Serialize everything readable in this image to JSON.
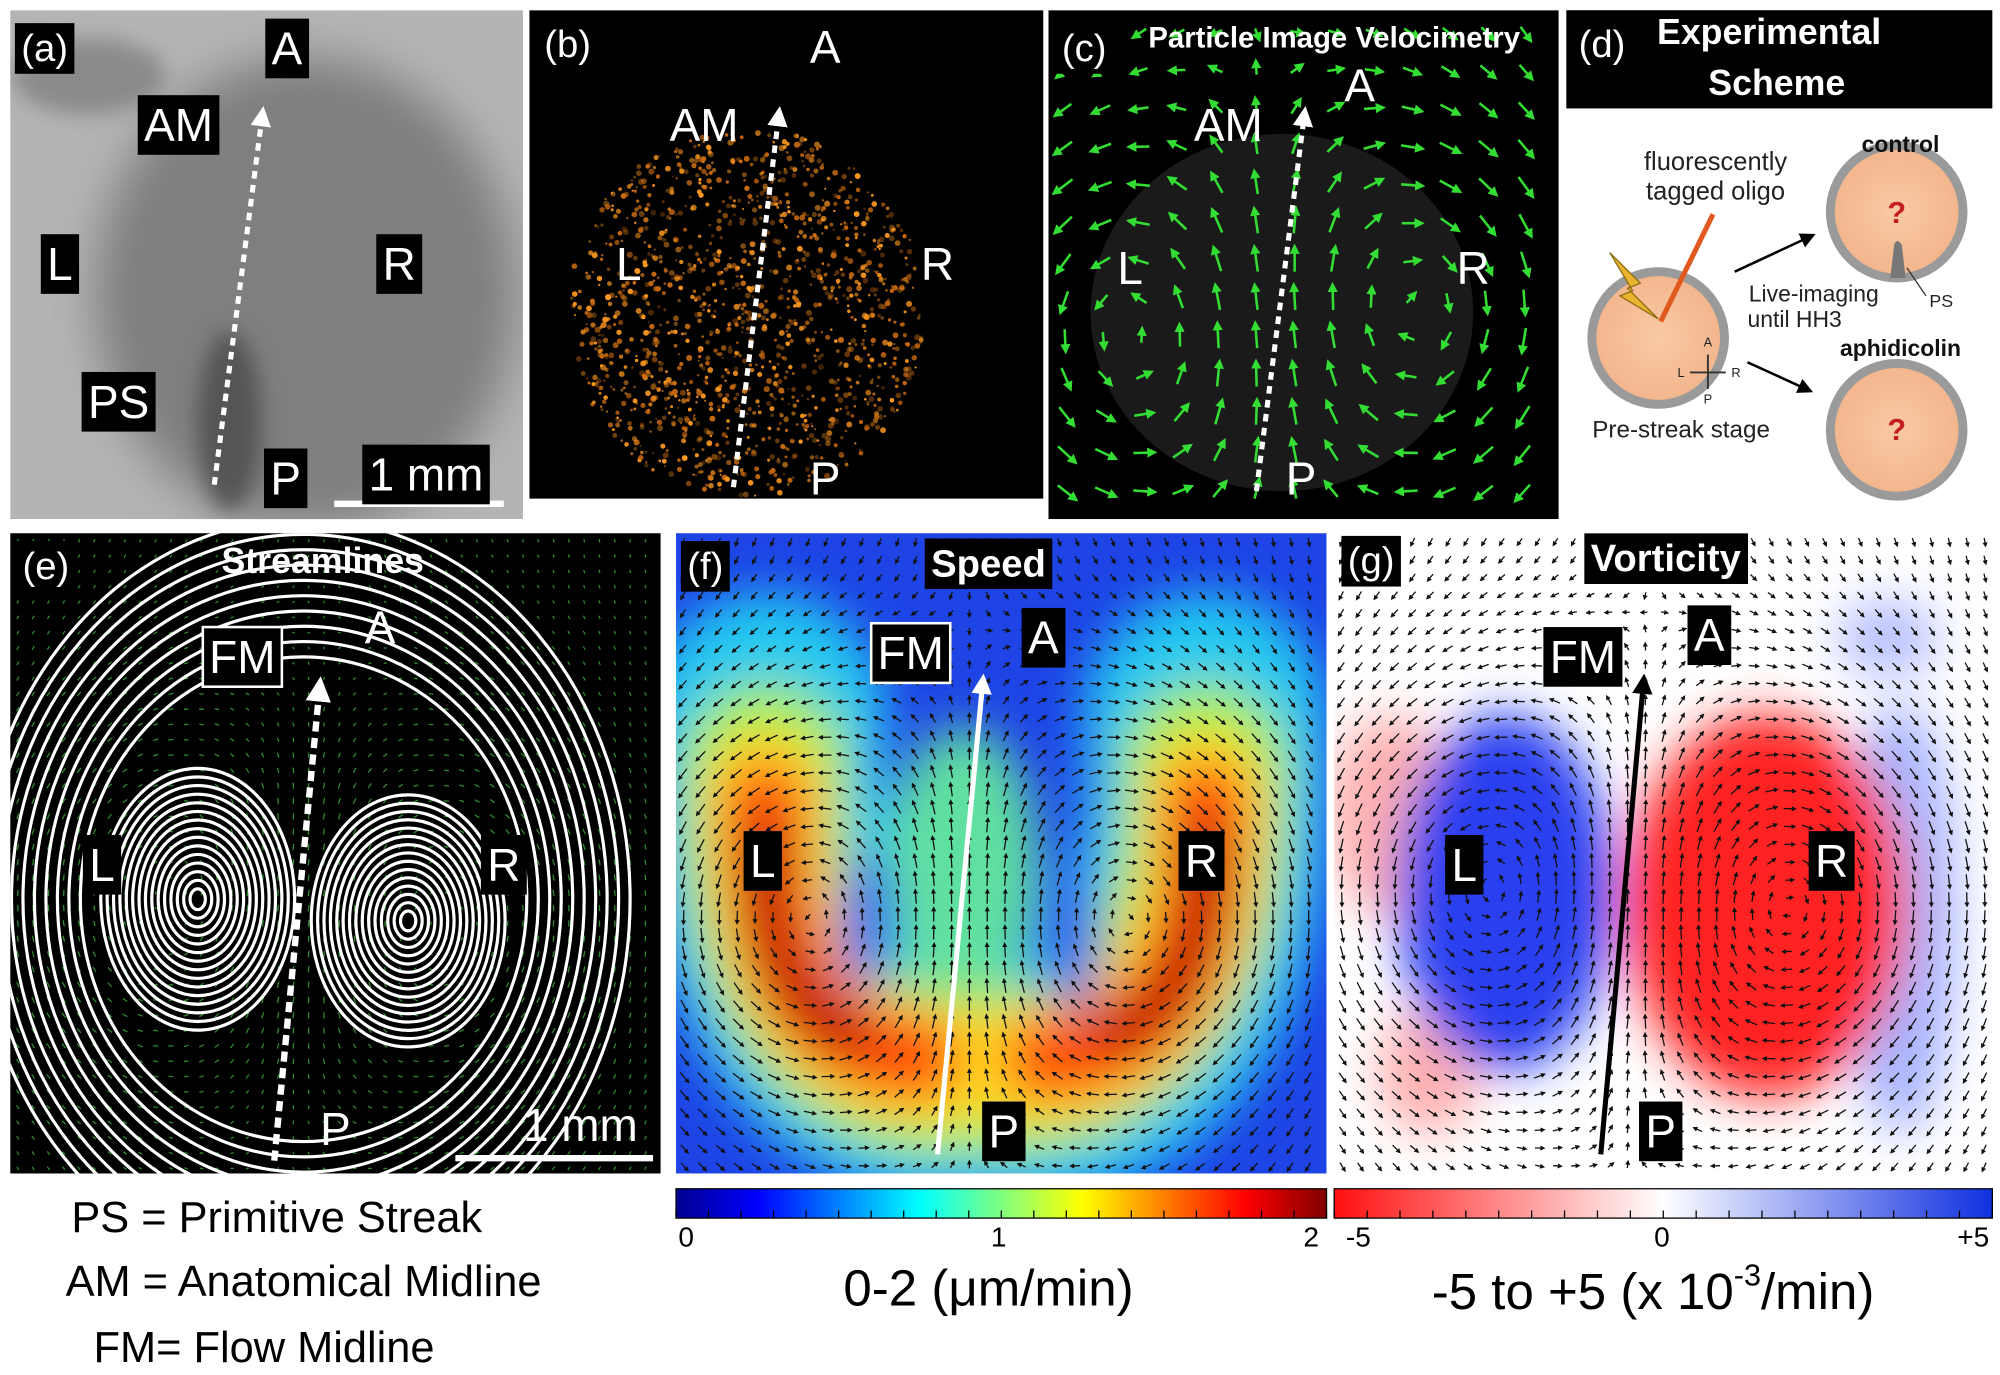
{
  "panel_a": {
    "label": "(a)",
    "markers": [
      "A",
      "AM",
      "L",
      "R",
      "PS",
      "P"
    ],
    "scale_bar": "1 mm"
  },
  "panel_b": {
    "label": "(b)",
    "markers": [
      "A",
      "AM",
      "L",
      "R",
      "P"
    ]
  },
  "panel_c": {
    "label": "(c)",
    "title": "Particle Image Velocimetry",
    "markers": [
      "A",
      "AM",
      "L",
      "R",
      "P"
    ]
  },
  "panel_d": {
    "label": "(d)",
    "title": [
      "Experimental",
      "Scheme"
    ],
    "injection": [
      "fluorescently",
      "tagged oligo"
    ],
    "imaging": [
      "Live-imaging",
      "until HH3"
    ],
    "axes": [
      "A",
      "L",
      "R",
      "P"
    ],
    "stage": "Pre-streak stage",
    "conditions": [
      {
        "name": "control",
        "result": "?",
        "annotation": "PS"
      },
      {
        "name": "aphidicolin",
        "result": "?"
      }
    ]
  },
  "panel_e": {
    "label": "(e)",
    "title": "Streamlines",
    "markers": [
      "FM",
      "A",
      "L",
      "R",
      "P"
    ],
    "scale_bar": "1 mm"
  },
  "panel_f": {
    "label": "(f)",
    "title": "Speed",
    "markers": [
      "FM",
      "A",
      "L",
      "R",
      "P"
    ],
    "colorbar": {
      "ticks": [
        "0",
        "1",
        "2"
      ],
      "caption": "0-2 (μm/min)"
    }
  },
  "panel_g": {
    "label": "(g)",
    "title": "Vorticity",
    "markers": [
      "FM",
      "A",
      "L",
      "R",
      "P"
    ],
    "colorbar": {
      "ticks": [
        "-5",
        "0",
        "+5"
      ],
      "caption": [
        "-5 to +5 (x 10",
        "-3",
        "/min)"
      ]
    }
  },
  "legend": [
    "PS = Primitive Streak",
    "AM = Anatomical Midline",
    "FM= Flow Midline"
  ]
}
